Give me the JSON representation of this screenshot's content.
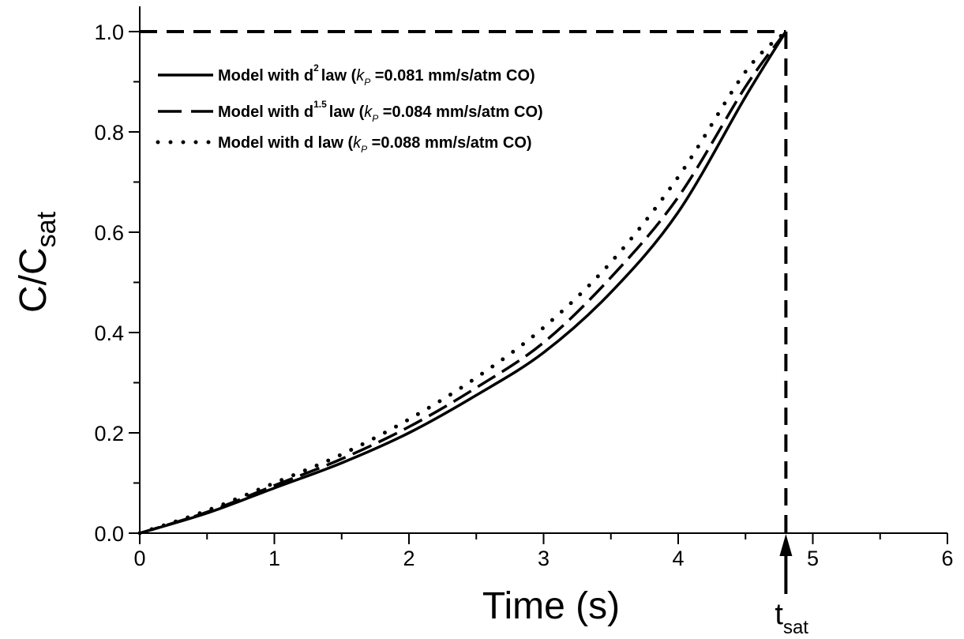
{
  "chart_data": {
    "type": "line",
    "xlabel": "Time (s)",
    "ylabel_main": "C/C",
    "ylabel_sub": "sat",
    "xlim": [
      0,
      6
    ],
    "ylim": [
      0,
      1.0
    ],
    "x_ticks": [
      "0",
      "1",
      "2",
      "3",
      "4",
      "5",
      "6"
    ],
    "y_ticks": [
      "0.0",
      "0.2",
      "0.4",
      "0.6",
      "0.8",
      "1.0"
    ],
    "grid": false,
    "legend_position": "top-left",
    "series": [
      {
        "label_pre": "Model with d",
        "label_sup": "2",
        "label_mid": "law (",
        "label_k": "k",
        "label_ksub": "P",
        "label_post": " =0.081 mm/s/atm CO)",
        "style": "solid",
        "x": [
          0,
          0.5,
          1.0,
          1.5,
          2.0,
          2.5,
          3.0,
          3.5,
          4.0,
          4.5,
          4.8
        ],
        "y": [
          0,
          0.04,
          0.09,
          0.14,
          0.2,
          0.275,
          0.36,
          0.48,
          0.64,
          0.87,
          1.0
        ]
      },
      {
        "label_pre": "Model with d",
        "label_sup": "1.5",
        "label_mid": "law (",
        "label_k": "k",
        "label_ksub": "P",
        "label_post": " =0.084 mm/s/atm CO)",
        "style": "dashed",
        "x": [
          0,
          0.5,
          1.0,
          1.5,
          2.0,
          2.5,
          3.0,
          3.5,
          4.0,
          4.5,
          4.8
        ],
        "y": [
          0,
          0.042,
          0.095,
          0.148,
          0.212,
          0.29,
          0.38,
          0.51,
          0.67,
          0.89,
          1.0
        ]
      },
      {
        "label_pre": "Model with d",
        "label_sup": "",
        "label_mid": " law (",
        "label_k": "k",
        "label_ksub": "P",
        "label_post": " =0.088 mm/s/atm CO)",
        "style": "dotted",
        "x": [
          0,
          0.5,
          1.0,
          1.5,
          2.0,
          2.5,
          3.0,
          3.5,
          4.0,
          4.5,
          4.8
        ],
        "y": [
          0,
          0.045,
          0.1,
          0.157,
          0.227,
          0.31,
          0.41,
          0.54,
          0.71,
          0.92,
          1.0
        ]
      }
    ],
    "reference_lines": {
      "horizontal_y": 1.0,
      "vertical_x": 4.8
    },
    "annotation": {
      "main": "t",
      "sub": "sat",
      "x": 4.8
    }
  }
}
